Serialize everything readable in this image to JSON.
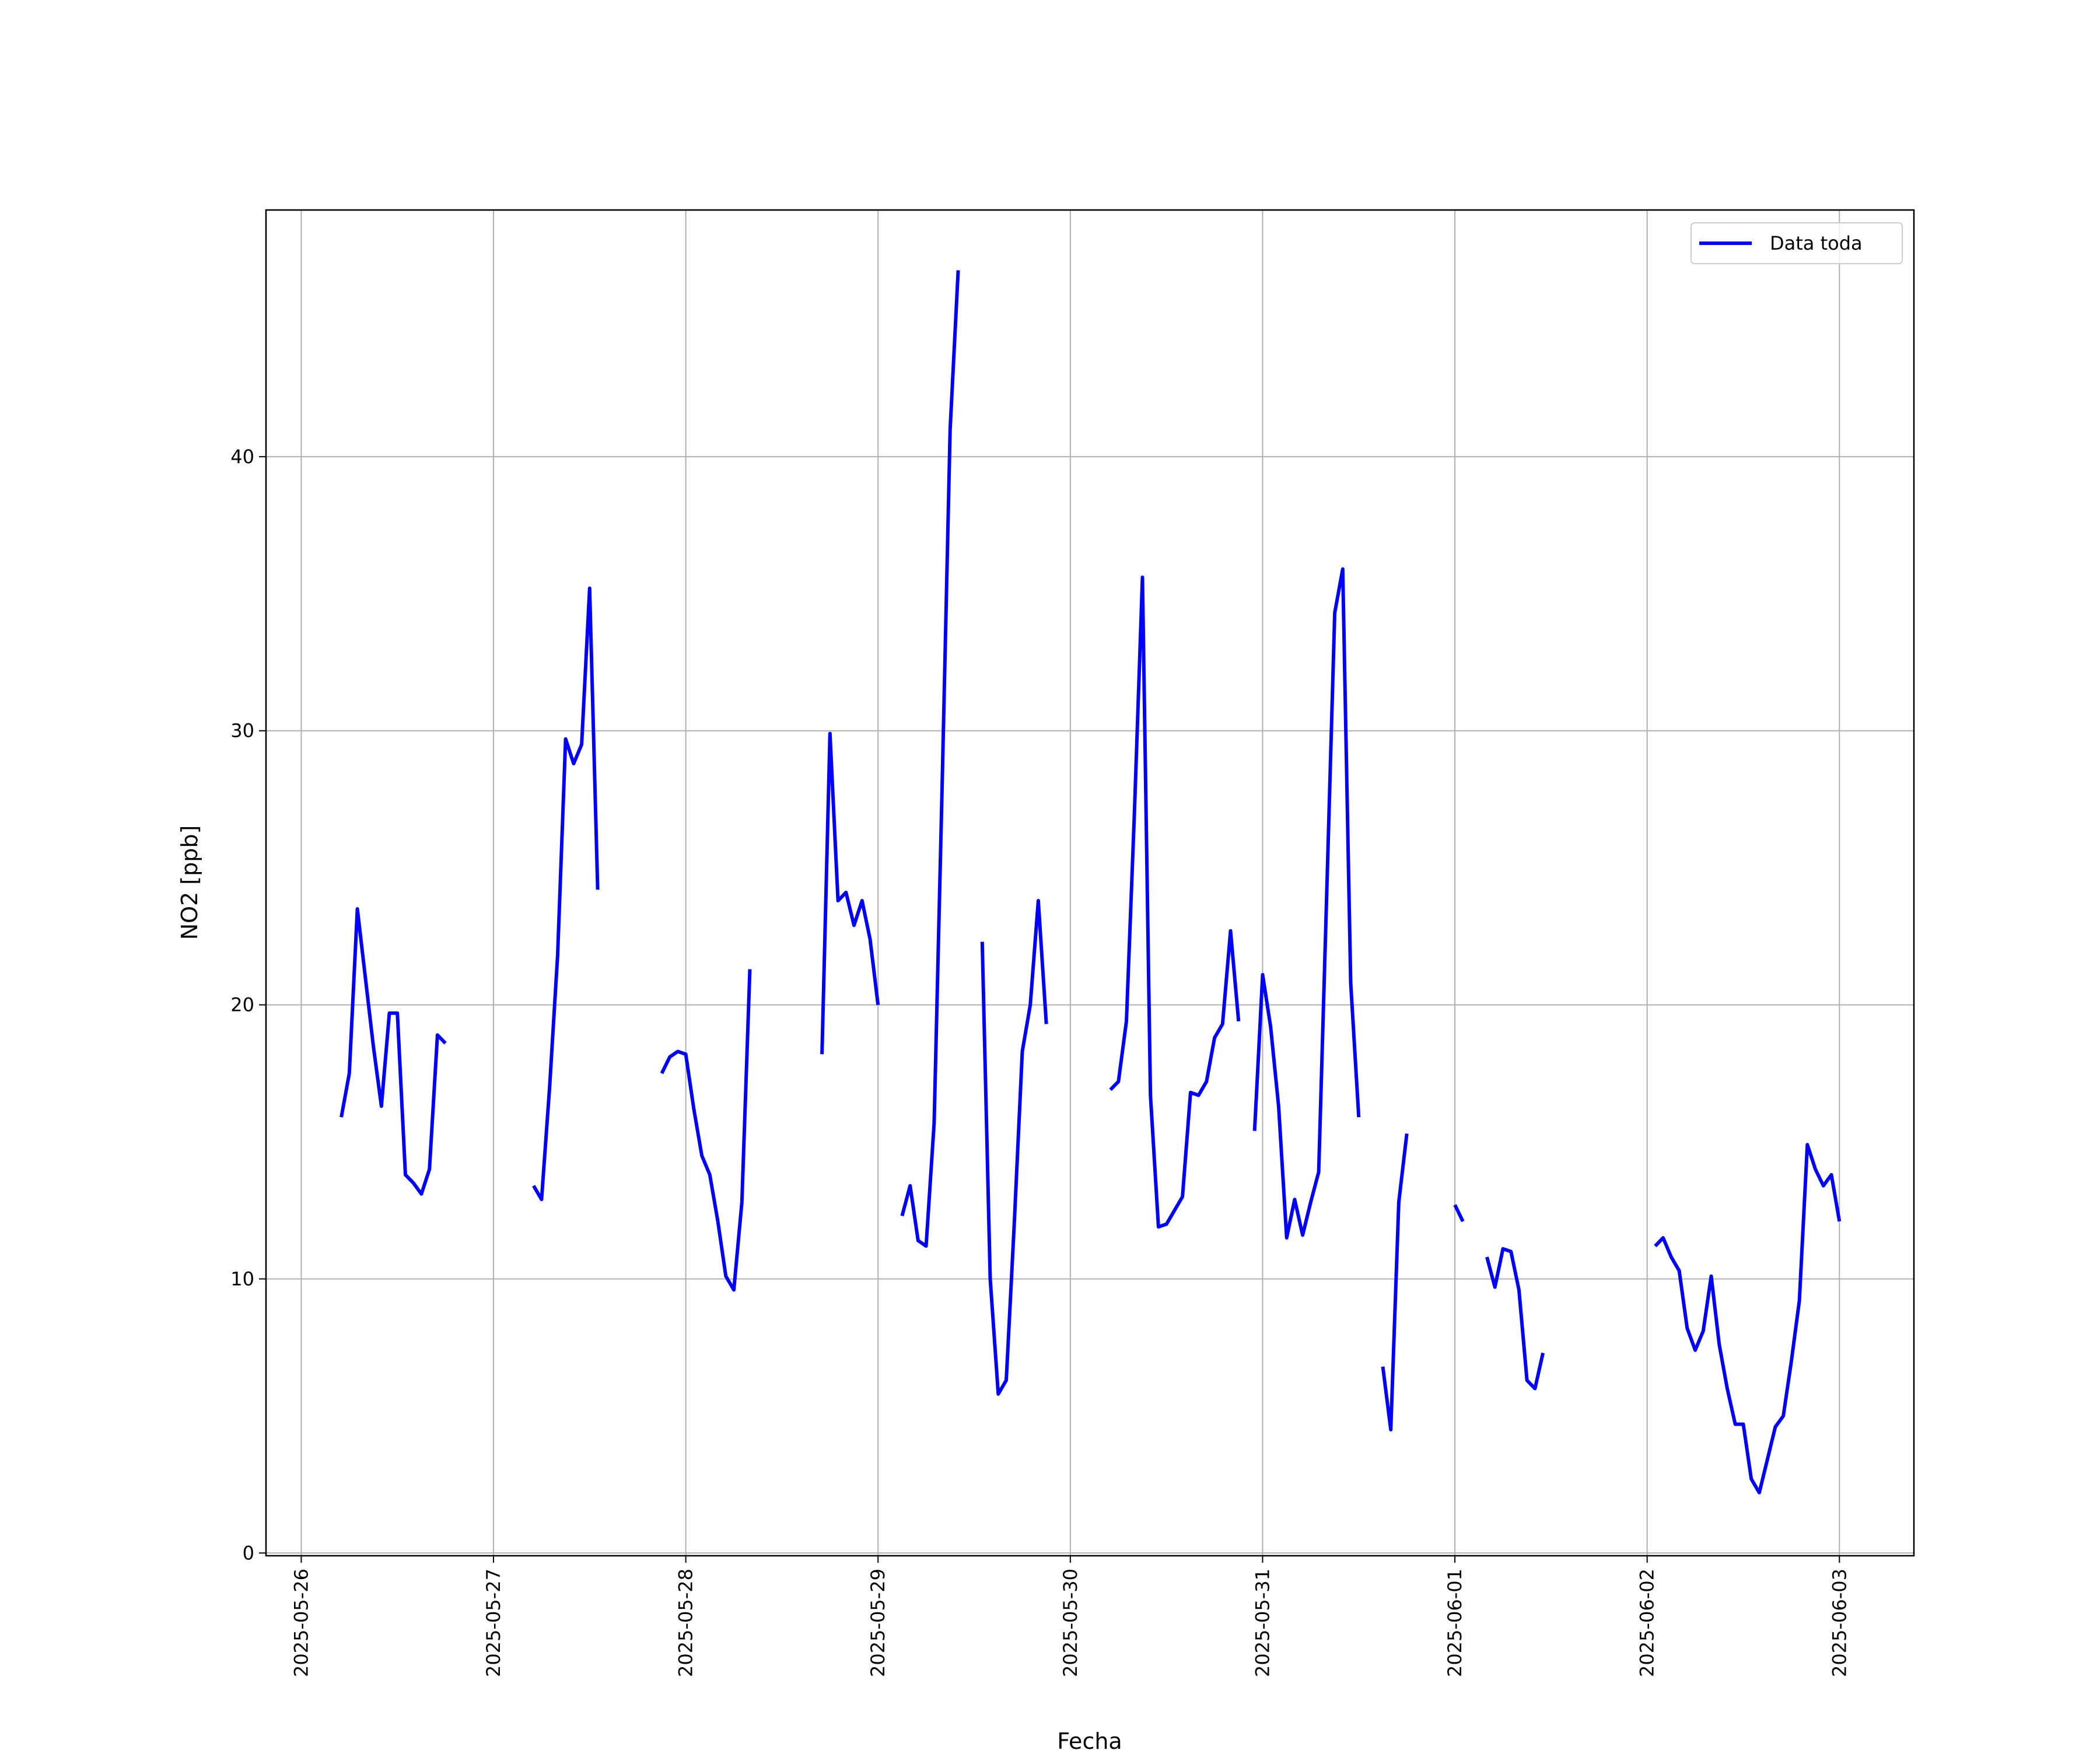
{
  "chart_data": {
    "type": "line",
    "xlabel": "Fecha",
    "ylabel": "NO2 [ppb]",
    "x": [
      "2025-05-26 05:00",
      "2025-05-26 06:00",
      "2025-05-26 07:00",
      "2025-05-26 08:00",
      "2025-05-26 09:00",
      "2025-05-26 10:00",
      "2025-05-26 11:00",
      "2025-05-26 12:00",
      "2025-05-26 13:00",
      "2025-05-26 14:00",
      "2025-05-26 15:00",
      "2025-05-26 16:00",
      "2025-05-26 17:00",
      "2025-05-26 18:00",
      "2025-05-26 19:00",
      "2025-05-27 05:00",
      "2025-05-27 06:00",
      "2025-05-27 07:00",
      "2025-05-27 08:00",
      "2025-05-27 09:00",
      "2025-05-27 10:00",
      "2025-05-27 11:00",
      "2025-05-27 12:00",
      "2025-05-27 13:00",
      "2025-05-27 14:00",
      "2025-05-27 21:00",
      "2025-05-27 22:00",
      "2025-05-27 23:00",
      "2025-05-28 00:00",
      "2025-05-28 01:00",
      "2025-05-28 02:00",
      "2025-05-28 03:00",
      "2025-05-28 04:00",
      "2025-05-28 05:00",
      "2025-05-28 06:00",
      "2025-05-28 07:00",
      "2025-05-28 08:00",
      "2025-05-28 09:00",
      "2025-05-28 17:00",
      "2025-05-28 18:00",
      "2025-05-28 19:00",
      "2025-05-28 20:00",
      "2025-05-28 21:00",
      "2025-05-28 22:00",
      "2025-05-28 23:00",
      "2025-05-29 00:00",
      "2025-05-29 01:00",
      "2025-05-29 03:00",
      "2025-05-29 04:00",
      "2025-05-29 05:00",
      "2025-05-29 06:00",
      "2025-05-29 07:00",
      "2025-05-29 08:00",
      "2025-05-29 09:00",
      "2025-05-29 10:00",
      "2025-05-29 11:00",
      "2025-05-29 13:00",
      "2025-05-29 14:00",
      "2025-05-29 15:00",
      "2025-05-29 16:00",
      "2025-05-29 17:00",
      "2025-05-29 18:00",
      "2025-05-29 19:00",
      "2025-05-29 20:00",
      "2025-05-29 21:00",
      "2025-05-29 22:00",
      "2025-05-30 05:00",
      "2025-05-30 06:00",
      "2025-05-30 07:00",
      "2025-05-30 08:00",
      "2025-05-30 09:00",
      "2025-05-30 10:00",
      "2025-05-30 11:00",
      "2025-05-30 12:00",
      "2025-05-30 13:00",
      "2025-05-30 14:00",
      "2025-05-30 15:00",
      "2025-05-30 16:00",
      "2025-05-30 17:00",
      "2025-05-30 18:00",
      "2025-05-30 19:00",
      "2025-05-30 20:00",
      "2025-05-30 21:00",
      "2025-05-30 22:00",
      "2025-05-30 23:00",
      "2025-05-31 00:00",
      "2025-05-31 01:00",
      "2025-05-31 02:00",
      "2025-05-31 03:00",
      "2025-05-31 04:00",
      "2025-05-31 05:00",
      "2025-05-31 06:00",
      "2025-05-31 07:00",
      "2025-05-31 08:00",
      "2025-05-31 09:00",
      "2025-05-31 10:00",
      "2025-05-31 11:00",
      "2025-05-31 12:00",
      "2025-05-31 13:00",
      "2025-05-31 15:00",
      "2025-05-31 16:00",
      "2025-05-31 17:00",
      "2025-05-31 18:00",
      "2025-05-31 19:00",
      "2025-06-01 00:00",
      "2025-06-01 01:00",
      "2025-06-01 02:00",
      "2025-06-01 04:00",
      "2025-06-01 05:00",
      "2025-06-01 06:00",
      "2025-06-01 07:00",
      "2025-06-01 08:00",
      "2025-06-01 09:00",
      "2025-06-01 10:00",
      "2025-06-01 11:00",
      "2025-06-01 12:00",
      "2025-06-02 01:00",
      "2025-06-02 02:00",
      "2025-06-02 03:00",
      "2025-06-02 04:00",
      "2025-06-02 05:00",
      "2025-06-02 06:00",
      "2025-06-02 07:00",
      "2025-06-02 08:00",
      "2025-06-02 09:00",
      "2025-06-02 10:00",
      "2025-06-02 11:00",
      "2025-06-02 12:00",
      "2025-06-02 13:00",
      "2025-06-02 14:00",
      "2025-06-02 15:00",
      "2025-06-02 16:00",
      "2025-06-02 17:00",
      "2025-06-02 18:00",
      "2025-06-02 19:00",
      "2025-06-02 20:00",
      "2025-06-02 21:00",
      "2025-06-02 22:00",
      "2025-06-02 23:00",
      "2025-06-03 00:00"
    ],
    "series": [
      {
        "name": "Data toda",
        "color": "#0000ff",
        "values": [
          15.9,
          17.5,
          23.5,
          21,
          18.5,
          16.3,
          19.7,
          19.7,
          13.8,
          13.5,
          13.1,
          14,
          18.9,
          18.6,
          null,
          13.4,
          12.9,
          17,
          21.8,
          29.7,
          28.8,
          29.5,
          35.2,
          24.2,
          null,
          17.5,
          18.1,
          18.3,
          18.2,
          16.2,
          14.5,
          13.8,
          12.1,
          10.1,
          9.6,
          12.8,
          21.3,
          null,
          18.2,
          29.9,
          23.8,
          24.1,
          22.9,
          23.8,
          22.4,
          20,
          null,
          12.3,
          13.4,
          11.4,
          11.2,
          15.7,
          28,
          41,
          46.8,
          null,
          22.3,
          10,
          5.8,
          6.3,
          12,
          18.3,
          20,
          23.8,
          19.3,
          null,
          16.9,
          17.2,
          19.4,
          27,
          35.6,
          16.7,
          11.9,
          12,
          12.5,
          13,
          16.8,
          16.7,
          17.2,
          18.8,
          19.3,
          22.7,
          19.4,
          null,
          15.4,
          21.1,
          19.2,
          16.3,
          11.5,
          12.9,
          11.6,
          12.8,
          13.9,
          24,
          34.3,
          35.9,
          20.8,
          15.9,
          null,
          6.8,
          4.5,
          12.8,
          15.3,
          null,
          12.7,
          12.1,
          null,
          10.8,
          9.7,
          11.1,
          11,
          9.6,
          6.3,
          6,
          7.3,
          null,
          11.2,
          11.5,
          10.8,
          10.3,
          8.2,
          7.4,
          8.1,
          10.1,
          7.6,
          6,
          4.7,
          4.7,
          2.7,
          2.2,
          3.4,
          4.6,
          5,
          7,
          9.2,
          14.9,
          14,
          13.4,
          13.8,
          12.1
        ]
      }
    ],
    "xlim": [
      "2025-05-25 19:36",
      "2025-06-03 09:18"
    ],
    "xticks": [
      "2025-05-26",
      "2025-05-27",
      "2025-05-28",
      "2025-05-29",
      "2025-05-30",
      "2025-05-31",
      "2025-06-01",
      "2025-06-02",
      "2025-06-03"
    ],
    "ylim": [
      -0.1,
      49.0
    ],
    "yticks": [
      0,
      10,
      20,
      30,
      40
    ],
    "grid": true,
    "legend": "upper right"
  }
}
